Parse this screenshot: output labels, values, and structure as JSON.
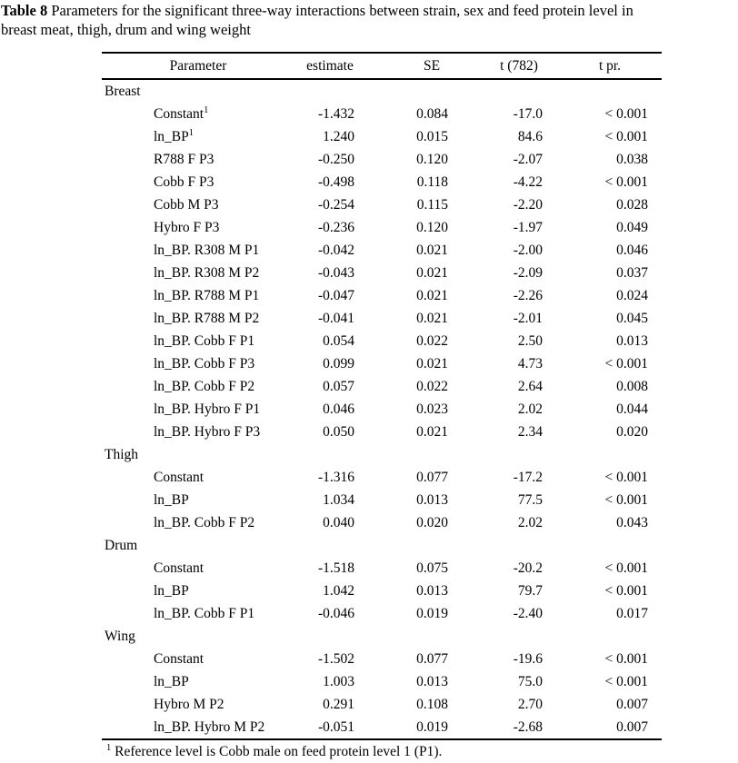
{
  "title": {
    "label": "Table 8",
    "line1": "Parameters for the significant three-way interactions between strain, sex and feed protein level in",
    "line2": "breast meat, thigh, drum and wing weight"
  },
  "table": {
    "headers": [
      "Parameter",
      "estimate",
      "SE",
      "t (782)",
      "t pr."
    ],
    "sections": [
      {
        "name": "Breast",
        "rows": [
          {
            "parameter": "Constant",
            "sup": "1",
            "estimate": "-1.432",
            "se": "0.084",
            "t": "-17.0",
            "tpr": "< 0.001"
          },
          {
            "parameter": "ln_BP",
            "sup": "1",
            "estimate": "1.240",
            "se": "0.015",
            "t": "84.6",
            "tpr": "< 0.001"
          },
          {
            "parameter": "R788 F P3",
            "estimate": "-0.250",
            "se": "0.120",
            "t": "-2.07",
            "tpr": "0.038"
          },
          {
            "parameter": "Cobb F P3",
            "estimate": "-0.498",
            "se": "0.118",
            "t": "-4.22",
            "tpr": "< 0.001"
          },
          {
            "parameter": "Cobb M P3",
            "estimate": "-0.254",
            "se": "0.115",
            "t": "-2.20",
            "tpr": "0.028"
          },
          {
            "parameter": "Hybro F P3",
            "estimate": "-0.236",
            "se": "0.120",
            "t": "-1.97",
            "tpr": "0.049"
          },
          {
            "parameter": "ln_BP. R308 M P1",
            "estimate": "-0.042",
            "se": "0.021",
            "t": "-2.00",
            "tpr": "0.046"
          },
          {
            "parameter": "ln_BP. R308 M P2",
            "estimate": "-0.043",
            "se": "0.021",
            "t": "-2.09",
            "tpr": "0.037"
          },
          {
            "parameter": "ln_BP. R788 M P1",
            "estimate": "-0.047",
            "se": "0.021",
            "t": "-2.26",
            "tpr": "0.024"
          },
          {
            "parameter": "ln_BP. R788 M P2",
            "estimate": "-0.041",
            "se": "0.021",
            "t": "-2.01",
            "tpr": "0.045"
          },
          {
            "parameter": "ln_BP. Cobb F P1",
            "estimate": "0.054",
            "se": "0.022",
            "t": "2.50",
            "tpr": "0.013"
          },
          {
            "parameter": "ln_BP. Cobb F P3",
            "estimate": "0.099",
            "se": "0.021",
            "t": "4.73",
            "tpr": "< 0.001"
          },
          {
            "parameter": "ln_BP. Cobb F P2",
            "estimate": "0.057",
            "se": "0.022",
            "t": "2.64",
            "tpr": "0.008"
          },
          {
            "parameter": "ln_BP. Hybro F P1",
            "estimate": "0.046",
            "se": "0.023",
            "t": "2.02",
            "tpr": "0.044"
          },
          {
            "parameter": "ln_BP. Hybro F P3",
            "estimate": "0.050",
            "se": "0.021",
            "t": "2.34",
            "tpr": "0.020"
          }
        ]
      },
      {
        "name": "Thigh",
        "rows": [
          {
            "parameter": "Constant",
            "estimate": "-1.316",
            "se": "0.077",
            "t": "-17.2",
            "tpr": "< 0.001"
          },
          {
            "parameter": "ln_BP",
            "estimate": "1.034",
            "se": "0.013",
            "t": "77.5",
            "tpr": "< 0.001"
          },
          {
            "parameter": "ln_BP. Cobb F P2",
            "estimate": "0.040",
            "se": "0.020",
            "t": "2.02",
            "tpr": "0.043"
          }
        ]
      },
      {
        "name": "Drum",
        "rows": [
          {
            "parameter": "Constant",
            "estimate": "-1.518",
            "se": "0.075",
            "t": "-20.2",
            "tpr": "< 0.001"
          },
          {
            "parameter": "ln_BP",
            "estimate": "1.042",
            "se": "0.013",
            "t": "79.7",
            "tpr": "< 0.001"
          },
          {
            "parameter": "ln_BP. Cobb F P1",
            "estimate": "-0.046",
            "se": "0.019",
            "t": "-2.40",
            "tpr": "0.017"
          }
        ]
      },
      {
        "name": "Wing",
        "rows": [
          {
            "parameter": "Constant",
            "estimate": "-1.502",
            "se": "0.077",
            "t": "-19.6",
            "tpr": "< 0.001"
          },
          {
            "parameter": "ln_BP",
            "estimate": "1.003",
            "se": "0.013",
            "t": "75.0",
            "tpr": "< 0.001"
          },
          {
            "parameter": "Hybro M P2",
            "estimate": "0.291",
            "se": "0.108",
            "t": "2.70",
            "tpr": "0.007"
          },
          {
            "parameter": "ln_BP. Hybro M P2",
            "estimate": "-0.051",
            "se": "0.019",
            "t": "-2.68",
            "tpr": "0.007"
          }
        ]
      }
    ],
    "footnote": {
      "sup": "1",
      "text": " Reference level is Cobb male on feed protein level 1 (P1)."
    }
  }
}
